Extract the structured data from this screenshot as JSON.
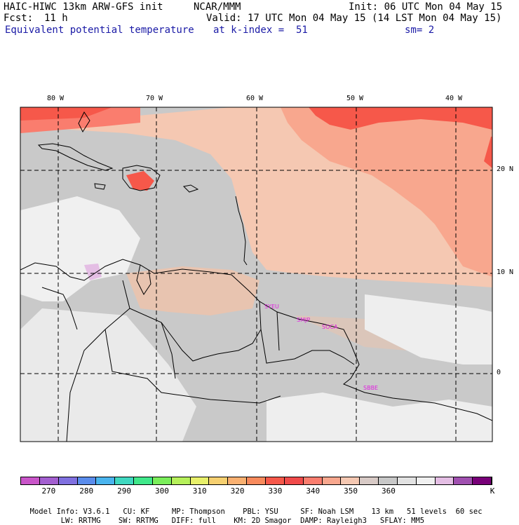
{
  "header": {
    "model_title": "HAIC-HIWC 13km ARW-GFS init",
    "org": "NCAR/MMM",
    "init": "Init: 06 UTC Mon 04 May 15",
    "fcst_label": "Fcst:",
    "fcst_value": "11 h",
    "valid": "Valid: 17 UTC Mon 04 May 15 (14 LST Mon 04 May 15)",
    "field": "Equivalent potential temperature",
    "level": "at k-index =  51",
    "smoothing": "sm= 2"
  },
  "map": {
    "lon_labels": [
      "80 W",
      "70 W",
      "60 W",
      "50 W",
      "40 W"
    ],
    "lat_labels": [
      "20 N",
      "10 N",
      "0"
    ],
    "stations": [
      "SYEU",
      "SMJP",
      "SOCA",
      "SBBE"
    ]
  },
  "colorbar": {
    "colors": [
      "#c955c9",
      "#a35fd0",
      "#8070e0",
      "#5a8cec",
      "#4ab4ee",
      "#3fd8c0",
      "#40e88a",
      "#7aee5a",
      "#b6f05a",
      "#e8f06a",
      "#f6d070",
      "#f9b070",
      "#f88a5c",
      "#f6584a",
      "#f04a4a",
      "#fa7d6e",
      "#f8a78e",
      "#f5c8b2",
      "#d8cac6",
      "#c8c8c8",
      "#e2e2e2",
      "#f0f0f0",
      "#e4bee4",
      "#a050b0",
      "#780078"
    ],
    "labels": [
      "270",
      "280",
      "290",
      "300",
      "310",
      "320",
      "330",
      "340",
      "350",
      "360"
    ],
    "unit": "K"
  },
  "footer": {
    "line1": [
      "Model Info: V3.6.1",
      "CU: KF",
      "MP: Thompson",
      "PBL: YSU",
      "SF: Noah LSM",
      "13 km",
      "51 levels",
      "60 sec"
    ],
    "line2": [
      "LW: RRTMG",
      "SW: RRTMG",
      "DIFF: full",
      "KM: 2D Smagor",
      "DAMP: Rayleigh3",
      "SFLAY: MM5"
    ]
  }
}
